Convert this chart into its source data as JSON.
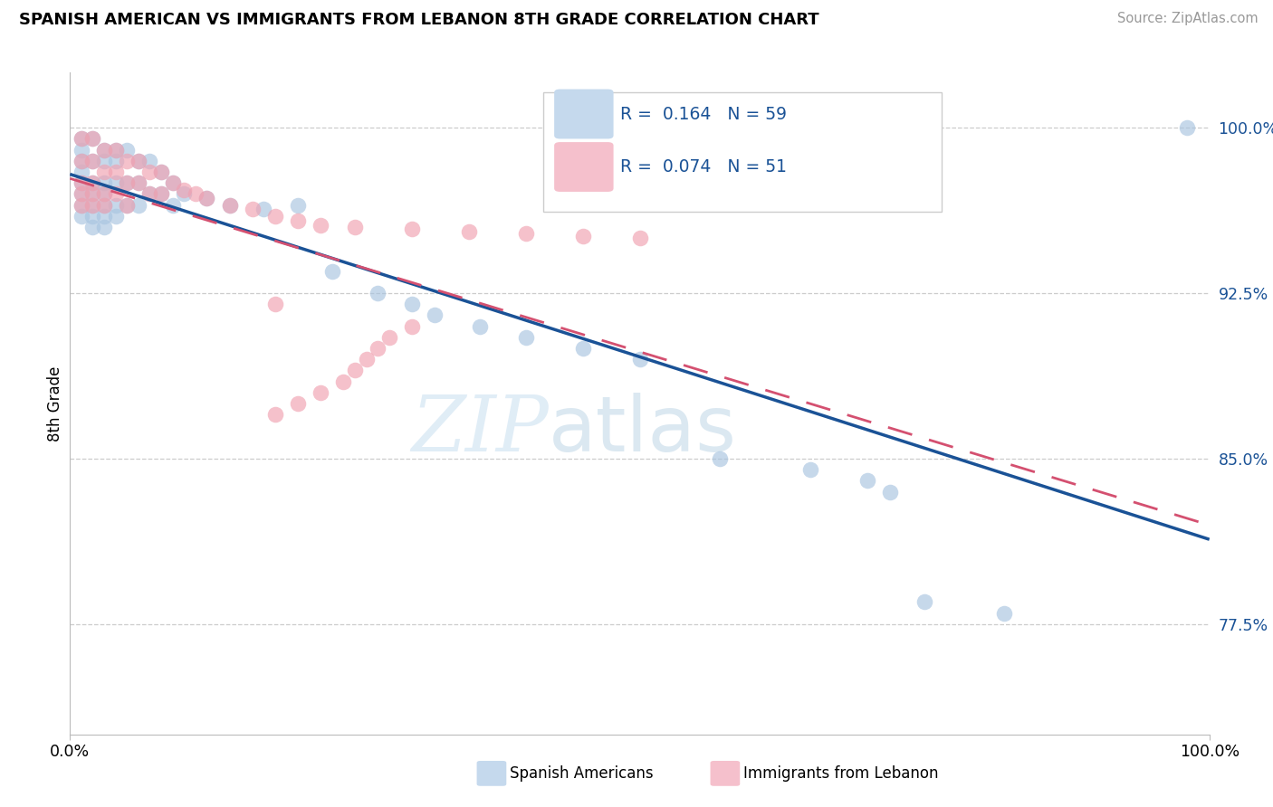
{
  "title": "SPANISH AMERICAN VS IMMIGRANTS FROM LEBANON 8TH GRADE CORRELATION CHART",
  "source": "Source: ZipAtlas.com",
  "ylabel": "8th Grade",
  "ytick_values": [
    0.775,
    0.85,
    0.925,
    1.0
  ],
  "ytick_labels": [
    "77.5%",
    "85.0%",
    "92.5%",
    "100.0%"
  ],
  "xlim": [
    0.0,
    1.0
  ],
  "ylim": [
    0.725,
    1.025
  ],
  "r_spanish": 0.164,
  "n_spanish": 59,
  "r_lebanon": 0.074,
  "n_lebanon": 51,
  "color_spanish": "#a8c4e0",
  "color_lebanon": "#f0a0b0",
  "line_color_spanish": "#1a5296",
  "line_color_lebanon": "#d45070",
  "legend_box_color_spanish": "#c5d9ed",
  "legend_box_color_lebanon": "#f5c0cc",
  "watermark_zip": "ZIP",
  "watermark_atlas": "atlas",
  "spanish_x": [
    0.01,
    0.01,
    0.01,
    0.01,
    0.01,
    0.01,
    0.01,
    0.01,
    0.02,
    0.02,
    0.02,
    0.02,
    0.02,
    0.02,
    0.02,
    0.03,
    0.03,
    0.03,
    0.03,
    0.03,
    0.03,
    0.03,
    0.04,
    0.04,
    0.04,
    0.04,
    0.04,
    0.05,
    0.05,
    0.05,
    0.06,
    0.06,
    0.06,
    0.07,
    0.07,
    0.08,
    0.08,
    0.09,
    0.09,
    0.1,
    0.12,
    0.14,
    0.17,
    0.2,
    0.23,
    0.27,
    0.3,
    0.32,
    0.36,
    0.4,
    0.45,
    0.5,
    0.57,
    0.65,
    0.7,
    0.72,
    0.75,
    0.82,
    0.98
  ],
  "spanish_y": [
    0.995,
    0.99,
    0.985,
    0.98,
    0.975,
    0.97,
    0.965,
    0.96,
    0.995,
    0.985,
    0.975,
    0.97,
    0.965,
    0.96,
    0.955,
    0.99,
    0.985,
    0.975,
    0.97,
    0.965,
    0.96,
    0.955,
    0.99,
    0.985,
    0.975,
    0.965,
    0.96,
    0.99,
    0.975,
    0.965,
    0.985,
    0.975,
    0.965,
    0.985,
    0.97,
    0.98,
    0.97,
    0.975,
    0.965,
    0.97,
    0.968,
    0.965,
    0.963,
    0.965,
    0.935,
    0.925,
    0.92,
    0.915,
    0.91,
    0.905,
    0.9,
    0.895,
    0.85,
    0.845,
    0.84,
    0.835,
    0.785,
    0.78,
    1.0
  ],
  "lebanon_x": [
    0.01,
    0.01,
    0.01,
    0.01,
    0.01,
    0.02,
    0.02,
    0.02,
    0.02,
    0.02,
    0.03,
    0.03,
    0.03,
    0.03,
    0.04,
    0.04,
    0.04,
    0.05,
    0.05,
    0.05,
    0.06,
    0.06,
    0.07,
    0.07,
    0.08,
    0.08,
    0.09,
    0.1,
    0.11,
    0.12,
    0.14,
    0.16,
    0.18,
    0.2,
    0.22,
    0.25,
    0.3,
    0.35,
    0.4,
    0.45,
    0.5,
    0.18,
    0.3,
    0.28,
    0.27,
    0.26,
    0.25,
    0.24,
    0.22,
    0.2,
    0.18
  ],
  "lebanon_y": [
    0.995,
    0.985,
    0.975,
    0.97,
    0.965,
    0.995,
    0.985,
    0.975,
    0.97,
    0.965,
    0.99,
    0.98,
    0.97,
    0.965,
    0.99,
    0.98,
    0.97,
    0.985,
    0.975,
    0.965,
    0.985,
    0.975,
    0.98,
    0.97,
    0.98,
    0.97,
    0.975,
    0.972,
    0.97,
    0.968,
    0.965,
    0.963,
    0.96,
    0.958,
    0.956,
    0.955,
    0.954,
    0.953,
    0.952,
    0.951,
    0.95,
    0.92,
    0.91,
    0.905,
    0.9,
    0.895,
    0.89,
    0.885,
    0.88,
    0.875,
    0.87
  ]
}
